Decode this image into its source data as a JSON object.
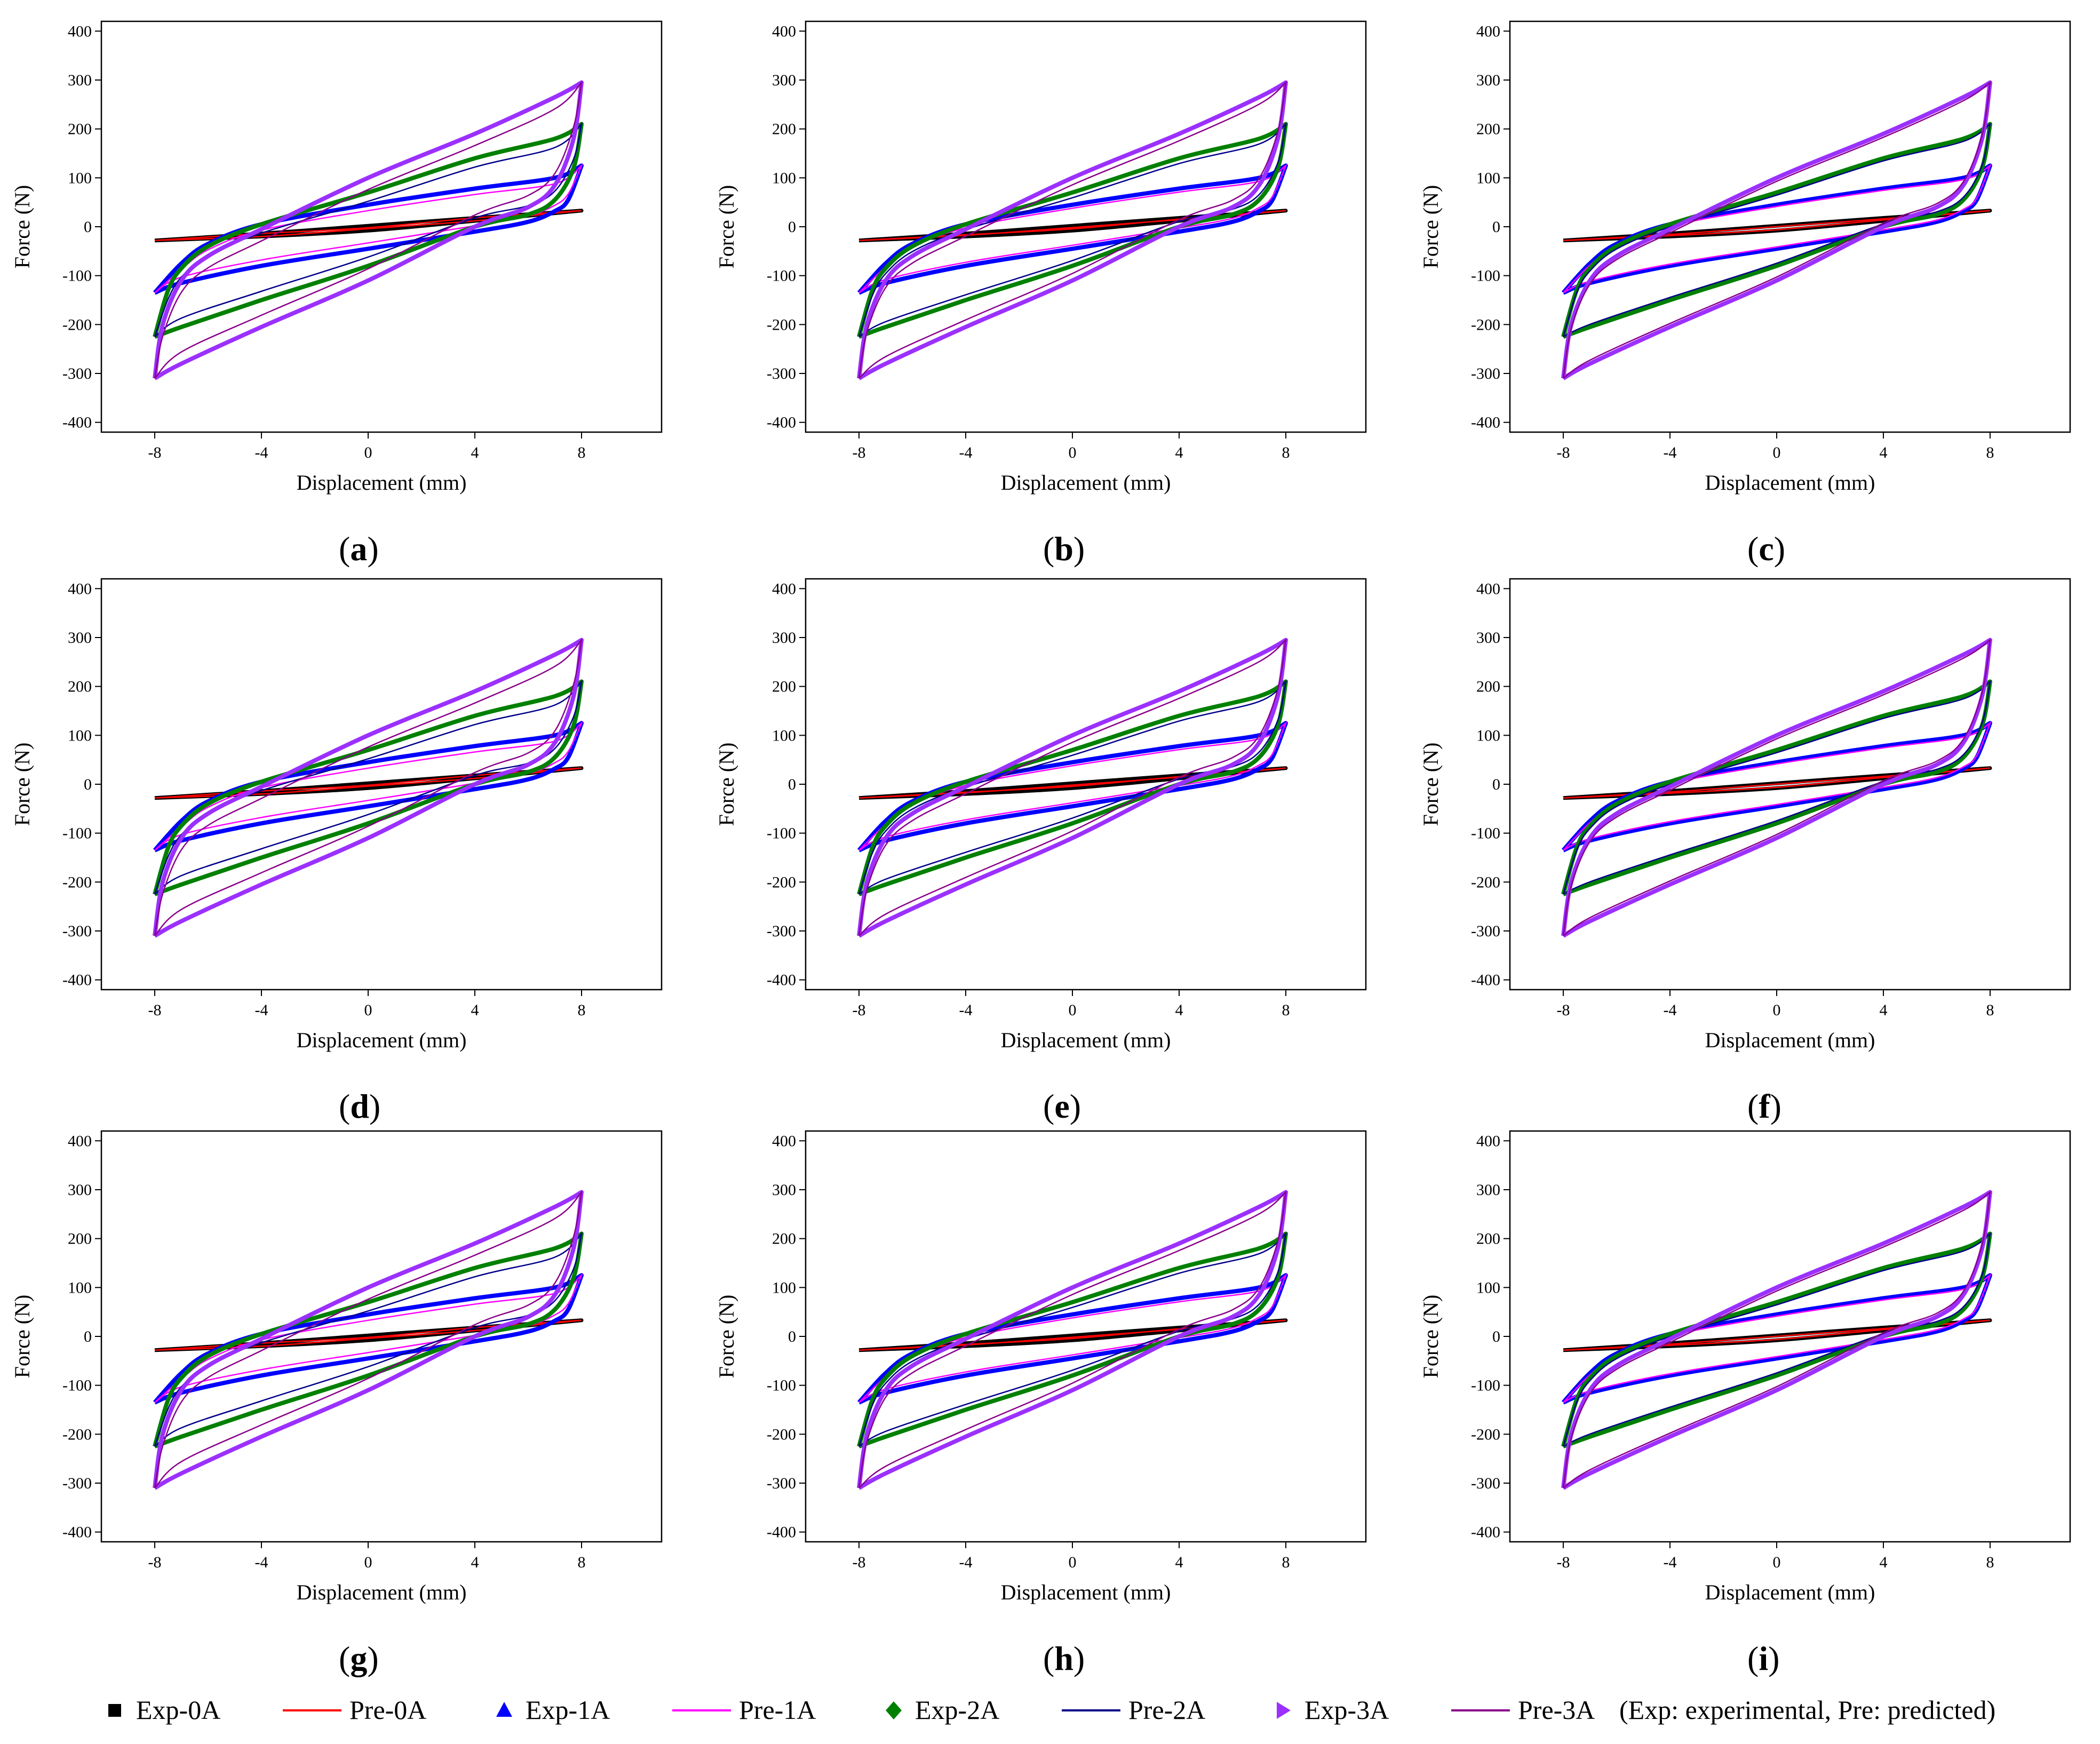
{
  "figure": {
    "panel_labels": [
      "a",
      "b",
      "c",
      "d",
      "e",
      "f",
      "g",
      "h",
      "i"
    ],
    "legend": [
      {
        "name": "Exp-0A",
        "color": "#000000",
        "marker": "square"
      },
      {
        "name": "Pre-0A",
        "color": "#ff0000",
        "marker": "line"
      },
      {
        "name": "Exp-1A",
        "color": "#0000ff",
        "marker": "triangle-up"
      },
      {
        "name": "Pre-1A",
        "color": "#ff00ff",
        "marker": "line"
      },
      {
        "name": "Exp-2A",
        "color": "#008000",
        "marker": "diamond"
      },
      {
        "name": "Pre-2A",
        "color": "#00008b",
        "marker": "line"
      },
      {
        "name": "Exp-3A",
        "color": "#9b30ff",
        "marker": "triangle-right"
      },
      {
        "name": "Pre-3A",
        "color": "#8b008b",
        "marker": "line"
      }
    ],
    "legend_note": "(Exp: experimental, Pre: predicted)"
  },
  "chart_data": {
    "type": "line",
    "xlabel": "Displacement (mm)",
    "ylabel": "Force (N)",
    "xlim": [
      -10,
      11
    ],
    "ylim": [
      -420,
      420
    ],
    "xticks": [
      -8,
      -4,
      0,
      4,
      8
    ],
    "yticks": [
      -400,
      -300,
      -200,
      -100,
      0,
      100,
      200,
      300,
      400
    ],
    "grid": false,
    "legend_position": "bottom",
    "panels": [
      "a",
      "b",
      "c",
      "d",
      "e",
      "f",
      "g",
      "h",
      "i"
    ],
    "series": [
      {
        "name": "Exp-0A",
        "color": "#000000",
        "upper": [
          [
            -8,
            -28
          ],
          [
            -4,
            -14
          ],
          [
            0,
            2
          ],
          [
            4,
            18
          ],
          [
            8,
            33
          ]
        ],
        "lower": [
          [
            8,
            33
          ],
          [
            4,
            12
          ],
          [
            0,
            -8
          ],
          [
            -4,
            -20
          ],
          [
            -8,
            -28
          ]
        ]
      },
      {
        "name": "Exp-1A",
        "color": "#0000ff",
        "upper": [
          [
            -8,
            -135
          ],
          [
            -7,
            -75
          ],
          [
            -6,
            -35
          ],
          [
            -4,
            5
          ],
          [
            0,
            45
          ],
          [
            4,
            78
          ],
          [
            7,
            100
          ],
          [
            8,
            125
          ]
        ],
        "lower": [
          [
            8,
            125
          ],
          [
            7.5,
            55
          ],
          [
            7,
            32
          ],
          [
            6,
            10
          ],
          [
            4,
            -10
          ],
          [
            0,
            -45
          ],
          [
            -4,
            -80
          ],
          [
            -7,
            -115
          ],
          [
            -8,
            -135
          ]
        ]
      },
      {
        "name": "Exp-2A",
        "color": "#008000",
        "upper": [
          [
            -8,
            -225
          ],
          [
            -7.5,
            -130
          ],
          [
            -7,
            -85
          ],
          [
            -6,
            -40
          ],
          [
            -4,
            5
          ],
          [
            0,
            70
          ],
          [
            4,
            140
          ],
          [
            7,
            180
          ],
          [
            8,
            210
          ]
        ],
        "lower": [
          [
            8,
            210
          ],
          [
            7.7,
            120
          ],
          [
            7,
            55
          ],
          [
            6,
            25
          ],
          [
            4,
            0
          ],
          [
            0,
            -80
          ],
          [
            -4,
            -150
          ],
          [
            -7,
            -205
          ],
          [
            -8,
            -225
          ]
        ]
      },
      {
        "name": "Exp-3A",
        "color": "#9b30ff",
        "upper": [
          [
            -8,
            -310
          ],
          [
            -7.7,
            -200
          ],
          [
            -7,
            -110
          ],
          [
            -6,
            -60
          ],
          [
            -4,
            -5
          ],
          [
            0,
            100
          ],
          [
            4,
            190
          ],
          [
            7,
            265
          ],
          [
            8,
            295
          ]
        ],
        "lower": [
          [
            8,
            295
          ],
          [
            7.7,
            180
          ],
          [
            7,
            85
          ],
          [
            6,
            40
          ],
          [
            4,
            0
          ],
          [
            0,
            -110
          ],
          [
            -4,
            -205
          ],
          [
            -7,
            -280
          ],
          [
            -8,
            -310
          ]
        ]
      }
    ]
  }
}
